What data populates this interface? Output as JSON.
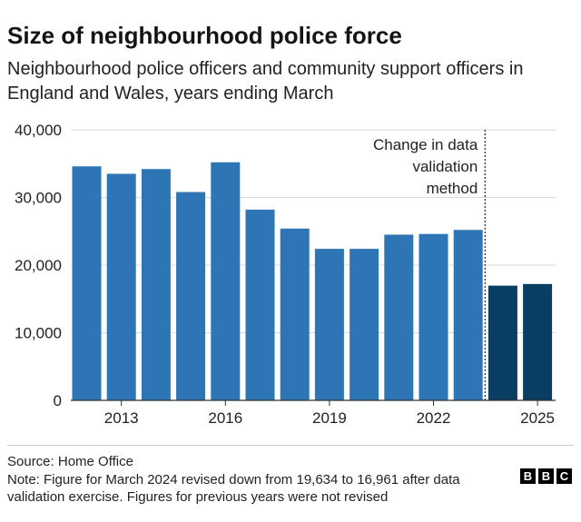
{
  "title": "Size of neighbourhood police force",
  "subtitle": "Neighbourhood police officers and community support officers in England and Wales, years ending March",
  "chart_data": {
    "type": "bar",
    "categories": [
      "2012",
      "2013",
      "2014",
      "2015",
      "2016",
      "2017",
      "2018",
      "2019",
      "2020",
      "2021",
      "2022",
      "2023",
      "2024",
      "2025"
    ],
    "x_tick_labels": [
      "2013",
      "2016",
      "2019",
      "2022",
      "2025"
    ],
    "values": [
      34600,
      33500,
      34200,
      30800,
      35200,
      28200,
      25400,
      22400,
      22400,
      24500,
      24600,
      25200,
      16961,
      17200
    ],
    "series_groups": [
      {
        "from": "2012",
        "to": "2023",
        "color": "#2e75b6"
      },
      {
        "from": "2024",
        "to": "2025",
        "color": "#0a3d62"
      }
    ],
    "y_ticks": [
      0,
      10000,
      20000,
      30000,
      40000
    ],
    "y_tick_labels": [
      "0",
      "10,000",
      "20,000",
      "30,000",
      "40,000"
    ],
    "ylim": [
      0,
      40000
    ],
    "xlabel": "",
    "ylabel": "",
    "grid": true,
    "annotation": {
      "lines": [
        "Change in data",
        "validation",
        "method"
      ],
      "position": "between 2023 and 2024"
    }
  },
  "footer": {
    "source": "Source: Home Office",
    "note": "Note: Figure for March 2024 revised down from 19,634 to 16,961 after data validation exercise. Figures for previous years were not revised"
  },
  "logo": {
    "letters": [
      "B",
      "B",
      "C"
    ]
  }
}
